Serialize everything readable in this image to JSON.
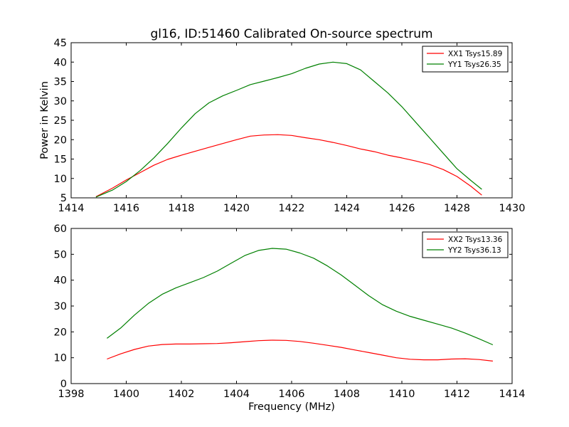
{
  "title": "gl16, ID:51460 Calibrated On-source spectrum",
  "ylabel": "Power in Kelvin",
  "xlabel": "Frequency (MHz)",
  "chart_data": [
    {
      "type": "line",
      "xlim": [
        1414,
        1430
      ],
      "ylim": [
        5,
        45
      ],
      "xticks": [
        1414,
        1416,
        1418,
        1420,
        1422,
        1424,
        1426,
        1428,
        1430
      ],
      "yticks": [
        5,
        10,
        15,
        20,
        25,
        30,
        35,
        40,
        45
      ],
      "legend_position": "top-right",
      "series": [
        {
          "name": "XX1 Tsys15.89",
          "color": "#ff0000",
          "x": [
            1414.9,
            1415.5,
            1416.0,
            1416.5,
            1417.0,
            1417.5,
            1418.0,
            1418.5,
            1419.0,
            1419.5,
            1420.0,
            1420.5,
            1421.0,
            1421.5,
            1422.0,
            1422.5,
            1423.0,
            1423.5,
            1424.0,
            1424.5,
            1425.0,
            1425.5,
            1426.0,
            1426.5,
            1427.0,
            1427.5,
            1428.0,
            1428.5,
            1428.9
          ],
          "y": [
            5.3,
            7.5,
            9.6,
            11.5,
            13.4,
            14.9,
            16.0,
            17.0,
            18.0,
            19.0,
            20.0,
            20.9,
            21.2,
            21.3,
            21.1,
            20.5,
            20.0,
            19.3,
            18.5,
            17.6,
            16.9,
            16.0,
            15.3,
            14.5,
            13.6,
            12.3,
            10.5,
            8.0,
            5.7
          ]
        },
        {
          "name": "YY1 Tsys26.35",
          "color": "#008000",
          "x": [
            1414.9,
            1415.5,
            1416.0,
            1416.5,
            1417.0,
            1417.5,
            1418.0,
            1418.5,
            1419.0,
            1419.5,
            1420.0,
            1420.5,
            1421.0,
            1421.5,
            1422.0,
            1422.5,
            1423.0,
            1423.5,
            1424.0,
            1424.5,
            1425.0,
            1425.5,
            1426.0,
            1426.5,
            1427.0,
            1427.5,
            1428.0,
            1428.5,
            1428.9
          ],
          "y": [
            5.2,
            7.0,
            9.2,
            12.0,
            15.3,
            19.0,
            23.0,
            26.7,
            29.5,
            31.3,
            32.7,
            34.2,
            35.1,
            36.0,
            37.0,
            38.4,
            39.5,
            40.0,
            39.6,
            38.0,
            35.0,
            32.0,
            28.5,
            24.5,
            20.5,
            16.5,
            12.5,
            9.5,
            7.2
          ]
        }
      ]
    },
    {
      "type": "line",
      "xlim": [
        1398,
        1414
      ],
      "ylim": [
        0,
        60
      ],
      "xticks": [
        1398,
        1400,
        1402,
        1404,
        1406,
        1408,
        1410,
        1412,
        1414
      ],
      "yticks": [
        0,
        10,
        20,
        30,
        40,
        50,
        60
      ],
      "legend_position": "top-right",
      "series": [
        {
          "name": "XX2 Tsys13.36",
          "color": "#ff0000",
          "x": [
            1399.3,
            1399.8,
            1400.3,
            1400.8,
            1401.3,
            1401.8,
            1402.3,
            1402.8,
            1403.3,
            1403.8,
            1404.3,
            1404.8,
            1405.3,
            1405.8,
            1406.3,
            1406.8,
            1407.3,
            1407.8,
            1408.3,
            1408.8,
            1409.3,
            1409.8,
            1410.3,
            1410.8,
            1411.3,
            1411.8,
            1412.3,
            1412.8,
            1413.3
          ],
          "y": [
            9.5,
            11.5,
            13.2,
            14.5,
            15.1,
            15.3,
            15.3,
            15.4,
            15.5,
            15.8,
            16.2,
            16.6,
            16.8,
            16.7,
            16.3,
            15.6,
            14.8,
            14.0,
            13.0,
            12.0,
            11.0,
            10.0,
            9.4,
            9.2,
            9.2,
            9.5,
            9.6,
            9.3,
            8.7
          ]
        },
        {
          "name": "YY2 Tsys36.13",
          "color": "#008000",
          "x": [
            1399.3,
            1399.8,
            1400.3,
            1400.8,
            1401.3,
            1401.8,
            1402.3,
            1402.8,
            1403.3,
            1403.8,
            1404.3,
            1404.8,
            1405.3,
            1405.8,
            1406.3,
            1406.8,
            1407.3,
            1407.8,
            1408.3,
            1408.8,
            1409.3,
            1409.8,
            1410.3,
            1410.8,
            1411.3,
            1411.8,
            1412.3,
            1412.8,
            1413.3
          ],
          "y": [
            17.5,
            21.5,
            26.5,
            31.0,
            34.5,
            37.0,
            39.0,
            41.0,
            43.5,
            46.5,
            49.5,
            51.5,
            52.3,
            52.0,
            50.5,
            48.5,
            45.5,
            42.0,
            38.0,
            34.0,
            30.5,
            28.0,
            26.0,
            24.5,
            23.0,
            21.5,
            19.5,
            17.3,
            15.0
          ]
        }
      ]
    }
  ]
}
